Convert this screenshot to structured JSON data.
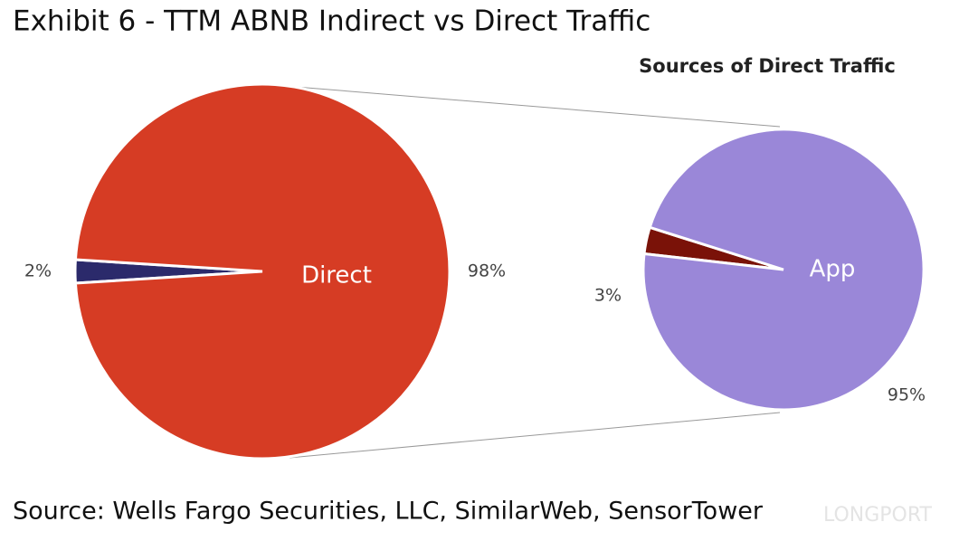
{
  "title": "Exhibit 6 - TTM ABNB Indirect vs Direct Traffic",
  "source": "Source: Wells Fargo Securities, LLC, SimilarWeb, SensorTower",
  "watermark": "LONGPORT",
  "chart_data": [
    {
      "type": "pie",
      "categories": [
        null,
        "Direct"
      ],
      "values": [
        2,
        98
      ],
      "value_labels": [
        "2%",
        "98%"
      ],
      "colors": [
        "#2b2a6b",
        "#d63c24"
      ]
    },
    {
      "type": "pie",
      "title": "Sources of Direct Traffic",
      "categories": [
        null,
        "App"
      ],
      "values": [
        3,
        95
      ],
      "value_labels": [
        "3%",
        "95%"
      ],
      "colors": [
        "#7a1208",
        "#9a87d8"
      ]
    }
  ]
}
